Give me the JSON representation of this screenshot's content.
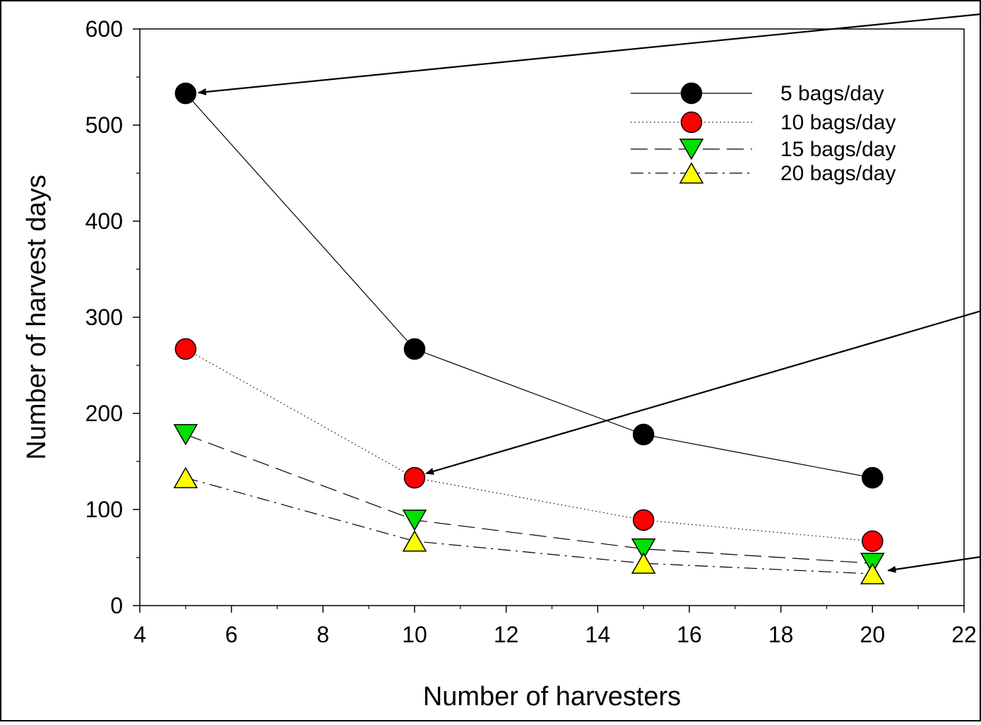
{
  "chart_data": {
    "type": "line",
    "title": "",
    "xlabel": "Number of harvesters",
    "ylabel": "Number of harvest days",
    "xlim": [
      4,
      22
    ],
    "ylim": [
      0,
      600
    ],
    "xticks": [
      4,
      6,
      8,
      10,
      12,
      14,
      16,
      18,
      20,
      22
    ],
    "yticks": [
      0,
      100,
      200,
      300,
      400,
      500,
      600
    ],
    "x": [
      5,
      10,
      15,
      20
    ],
    "legend_position": "top-right",
    "grid": false,
    "series": [
      {
        "name": "5 bags/day",
        "values": [
          533,
          267,
          178,
          133
        ],
        "marker": "circle",
        "color": "#000000",
        "line": "solid"
      },
      {
        "name": "10 bags/day",
        "values": [
          267,
          133,
          89,
          67
        ],
        "marker": "circle",
        "color": "#ff0000",
        "line": "dotted"
      },
      {
        "name": "15 bags/day",
        "values": [
          178,
          89,
          59,
          44
        ],
        "marker": "triangle-down",
        "color": "#00e000",
        "line": "dashed"
      },
      {
        "name": "20 bags/day",
        "values": [
          133,
          67,
          44,
          33
        ],
        "marker": "triangle-up",
        "color": "#ffff00",
        "line": "dashdot"
      }
    ],
    "annotations": [
      {
        "type": "arrow",
        "target_x": 5,
        "target_y": 533
      },
      {
        "type": "arrow",
        "target_x": 10,
        "target_y": 133
      },
      {
        "type": "arrow",
        "target_x": 20,
        "target_y": 35
      }
    ]
  }
}
